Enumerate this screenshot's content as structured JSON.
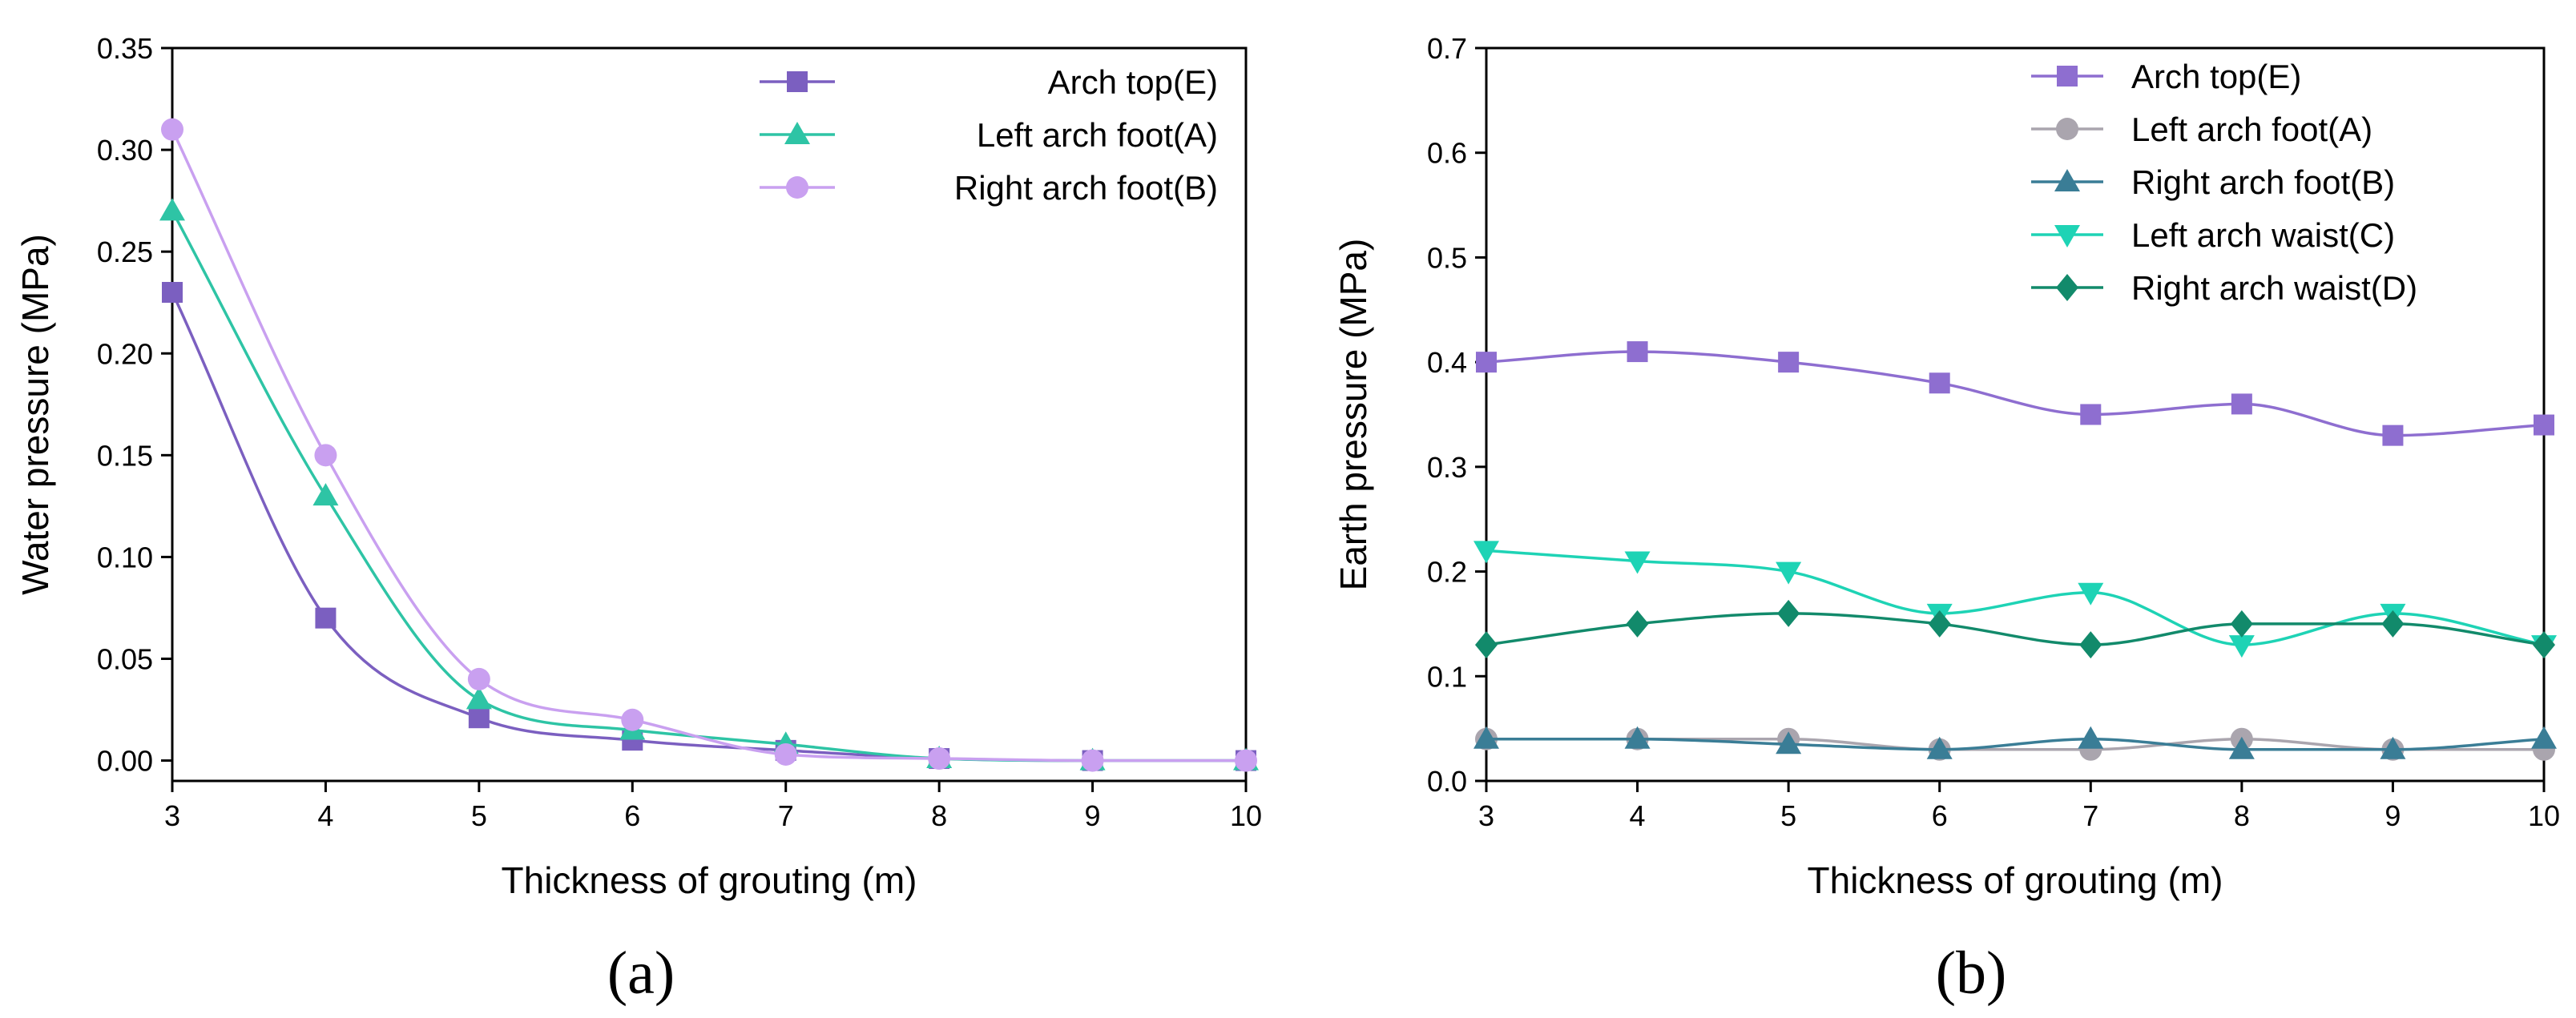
{
  "chart_data": [
    {
      "type": "line",
      "panel_label": "(a)",
      "xlabel": "Thickness of grouting (m)",
      "ylabel": "Water pressure (MPa)",
      "xlim": [
        3,
        10
      ],
      "ylim": [
        -0.01,
        0.35
      ],
      "xticks": [
        "3",
        "4",
        "5",
        "6",
        "7",
        "8",
        "9",
        "10"
      ],
      "yticks": [
        "0.00",
        "0.05",
        "0.10",
        "0.15",
        "0.20",
        "0.25",
        "0.30",
        "0.35"
      ],
      "legend_position": "top-right",
      "grid": false,
      "x": [
        3,
        4,
        5,
        6,
        7,
        8,
        9,
        10
      ],
      "series": [
        {
          "name": "Arch top(E)",
          "color": "#7b5fc0",
          "marker": "square",
          "values": [
            0.23,
            0.07,
            0.021,
            0.01,
            0.005,
            0.001,
            0.0,
            0.0
          ]
        },
        {
          "name": "Left arch foot(A)",
          "color": "#2ec4a5",
          "marker": "triangle-up",
          "values": [
            0.27,
            0.13,
            0.03,
            0.015,
            0.008,
            0.001,
            0.0,
            0.0
          ]
        },
        {
          "name": "Right arch foot(B)",
          "color": "#c9a0f0",
          "marker": "circle",
          "values": [
            0.31,
            0.15,
            0.04,
            0.02,
            0.003,
            0.001,
            0.0,
            0.0
          ]
        }
      ]
    },
    {
      "type": "line",
      "panel_label": "(b)",
      "xlabel": "Thickness of grouting (m)",
      "ylabel": "Earth pressure (MPa)",
      "xlim": [
        3,
        10
      ],
      "ylim": [
        0,
        0.7
      ],
      "xticks": [
        "3",
        "4",
        "5",
        "6",
        "7",
        "8",
        "9",
        "10"
      ],
      "yticks": [
        "0.0",
        "0.1",
        "0.2",
        "0.3",
        "0.4",
        "0.5",
        "0.6",
        "0.7"
      ],
      "legend_position": "top-right",
      "grid": false,
      "x": [
        3,
        4,
        5,
        6,
        7,
        8,
        9,
        10
      ],
      "series": [
        {
          "name": "Arch top(E)",
          "color": "#8e6ed0",
          "marker": "square",
          "values": [
            0.4,
            0.41,
            0.4,
            0.38,
            0.35,
            0.36,
            0.33,
            0.34
          ]
        },
        {
          "name": "Left arch foot(A)",
          "color": "#aaa5ae",
          "marker": "circle",
          "values": [
            0.04,
            0.04,
            0.04,
            0.03,
            0.03,
            0.04,
            0.03,
            0.03
          ]
        },
        {
          "name": "Right arch foot(B)",
          "color": "#3a7d96",
          "marker": "triangle-up",
          "values": [
            0.04,
            0.04,
            0.035,
            0.03,
            0.04,
            0.03,
            0.03,
            0.04
          ]
        },
        {
          "name": "Left arch waist(C)",
          "color": "#1ed3b5",
          "marker": "triangle-down",
          "values": [
            0.22,
            0.21,
            0.2,
            0.16,
            0.18,
            0.13,
            0.16,
            0.13
          ]
        },
        {
          "name": "Right arch waist(D)",
          "color": "#128a6b",
          "marker": "diamond",
          "values": [
            0.13,
            0.15,
            0.16,
            0.15,
            0.13,
            0.15,
            0.15,
            0.13
          ]
        }
      ]
    }
  ]
}
